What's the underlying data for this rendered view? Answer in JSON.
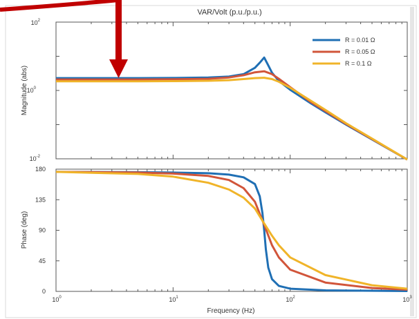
{
  "colors": {
    "r001": "#1f6fb4",
    "r005": "#d1553a",
    "r01": "#f0b429",
    "arrow": "#c00000",
    "axis": "#555555",
    "panel_border": "#d9d9d9"
  },
  "chart_data": [
    {
      "type": "line",
      "title": "VAR/Volt (p.u./p.u.)",
      "xlabel": "",
      "ylabel": "Magnitude (abs)",
      "xscale": "log",
      "yscale": "log",
      "xlim": [
        1,
        1000
      ],
      "ylim": [
        0.01,
        100
      ],
      "ytick_labels": [
        {
          "base": "10",
          "exp": "2",
          "value": 100
        },
        {
          "base": "10",
          "exp": "0",
          "value": 1
        },
        {
          "base": "10",
          "exp": "-2",
          "value": 0.01
        }
      ],
      "legend_position": "top-right",
      "grid": false,
      "series": [
        {
          "name": "R = 0.01 Ω",
          "color": "#1f6fb4",
          "x": [
            1,
            5,
            10,
            20,
            30,
            40,
            50,
            55,
            60,
            65,
            70,
            80,
            100,
            150,
            200,
            300,
            500,
            1000
          ],
          "y": [
            2.3,
            2.3,
            2.32,
            2.4,
            2.55,
            3.0,
            4.6,
            6.5,
            9.2,
            5.4,
            3.3,
            1.9,
            1.05,
            0.42,
            0.23,
            0.1,
            0.037,
            0.0095
          ]
        },
        {
          "name": "R = 0.05 Ω",
          "color": "#d1553a",
          "x": [
            1,
            5,
            10,
            20,
            30,
            40,
            50,
            60,
            70,
            80,
            100,
            150,
            200,
            300,
            500,
            1000
          ],
          "y": [
            2.1,
            2.1,
            2.12,
            2.2,
            2.4,
            2.8,
            3.4,
            3.65,
            3.0,
            2.2,
            1.25,
            0.46,
            0.25,
            0.105,
            0.038,
            0.0095
          ]
        },
        {
          "name": "R = 0.1 Ω",
          "color": "#f0b429",
          "x": [
            1,
            5,
            10,
            20,
            30,
            40,
            50,
            60,
            70,
            80,
            100,
            150,
            200,
            300,
            500,
            1000
          ],
          "y": [
            1.85,
            1.85,
            1.87,
            1.92,
            2.0,
            2.15,
            2.3,
            2.35,
            2.15,
            1.8,
            1.2,
            0.5,
            0.27,
            0.11,
            0.039,
            0.0095
          ]
        }
      ]
    },
    {
      "type": "line",
      "title": "",
      "xlabel": "Frequency (Hz)",
      "ylabel": "Phase (deg)",
      "xscale": "log",
      "xlim": [
        1,
        1000
      ],
      "ylim": [
        0,
        180
      ],
      "yticks": [
        0,
        45,
        90,
        135,
        180
      ],
      "xtick_labels": [
        {
          "base": "10",
          "exp": "0",
          "value": 1
        },
        {
          "base": "10",
          "exp": "1",
          "value": 10
        },
        {
          "base": "10",
          "exp": "2",
          "value": 100
        },
        {
          "base": "10",
          "exp": "3",
          "value": 1000
        }
      ],
      "grid": false,
      "series": [
        {
          "name": "R = 0.01 Ω",
          "color": "#1f6fb4",
          "x": [
            1,
            5,
            10,
            20,
            30,
            40,
            50,
            55,
            58,
            60,
            62,
            65,
            70,
            80,
            100,
            200,
            1000
          ],
          "y": [
            176,
            175.5,
            175,
            174,
            172,
            168,
            158,
            140,
            115,
            90,
            62,
            35,
            18,
            8,
            4,
            1.5,
            0.5
          ]
        },
        {
          "name": "R = 0.05 Ω",
          "color": "#d1553a",
          "x": [
            1,
            5,
            10,
            20,
            30,
            40,
            50,
            60,
            70,
            80,
            100,
            200,
            500,
            1000
          ],
          "y": [
            176,
            175,
            173.5,
            170,
            164,
            152,
            132,
            98,
            68,
            50,
            32,
            13,
            5,
            2.5
          ]
        },
        {
          "name": "R = 0.1 Ω",
          "color": "#f0b429",
          "x": [
            1,
            5,
            10,
            20,
            30,
            40,
            50,
            60,
            70,
            80,
            100,
            200,
            500,
            1000
          ],
          "y": [
            176,
            173,
            169,
            160,
            150,
            138,
            122,
            100,
            82,
            68,
            50,
            24,
            9,
            4
          ]
        }
      ]
    }
  ]
}
